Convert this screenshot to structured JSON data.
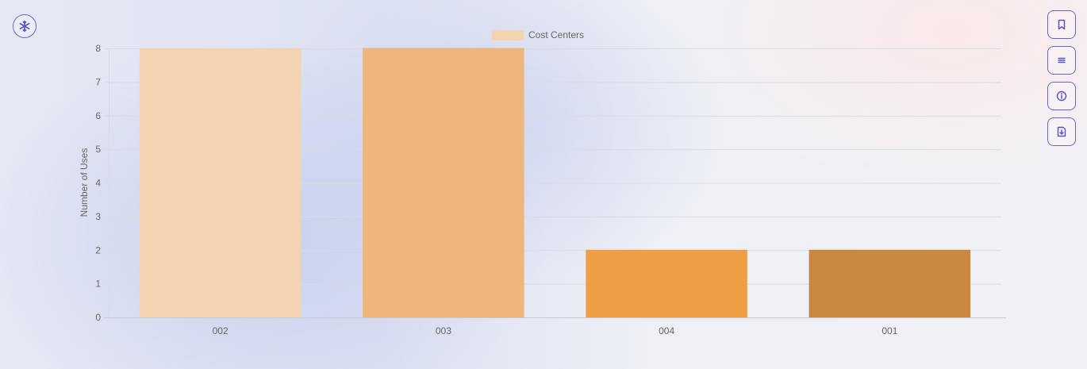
{
  "chart_data": {
    "type": "bar",
    "categories": [
      "002",
      "003",
      "004",
      "001"
    ],
    "series": [
      {
        "name": "Cost Centers",
        "values": [
          8,
          8,
          2,
          2
        ],
        "colors": [
          "#f3d3b0",
          "#eeb67c",
          "#ee9f44",
          "#c98841"
        ]
      }
    ],
    "ylabel": "Number of Uses",
    "xlabel": "",
    "ylim": [
      0,
      8
    ],
    "yticks": [
      0,
      1,
      2,
      3,
      4,
      5,
      6,
      7,
      8
    ],
    "grid": true,
    "legend_position": "top-center"
  },
  "toolbar": {
    "logo_icon": "snowflake-icon",
    "buttons": [
      {
        "icon": "bookmark-icon"
      },
      {
        "icon": "menu-icon"
      },
      {
        "icon": "info-icon"
      },
      {
        "icon": "download-icon"
      }
    ]
  },
  "colors": {
    "accent": "#6b63c9",
    "grid": "#d9dbe3",
    "text": "#666666"
  }
}
